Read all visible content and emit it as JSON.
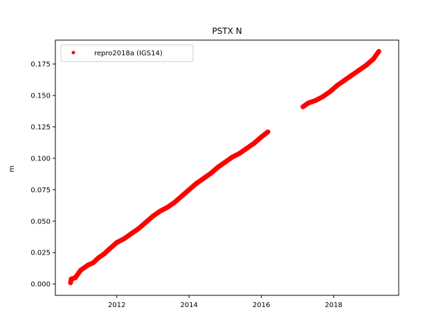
{
  "chart_data": {
    "type": "scatter",
    "title": "PSTX N",
    "xlabel": "",
    "ylabel": "m",
    "xlim": [
      2010.3,
      2019.8
    ],
    "ylim": [
      -0.009,
      0.194
    ],
    "x_ticks": [
      2012,
      2014,
      2016,
      2018
    ],
    "y_ticks": [
      0.0,
      0.025,
      0.05,
      0.075,
      0.1,
      0.125,
      0.15,
      0.175
    ],
    "y_tick_labels": [
      "0.000",
      "0.025",
      "0.050",
      "0.075",
      "0.100",
      "0.125",
      "0.150",
      "0.175"
    ],
    "x_tick_labels": [
      "2012",
      "2014",
      "2016",
      "2018"
    ],
    "grid": false,
    "legend_position": "top-left",
    "series": [
      {
        "name": "repro2018a (IGS14)",
        "color": "#ff0000",
        "marker": "circle",
        "x": [
          2010.72,
          2010.74,
          2010.85,
          2011.0,
          2011.1,
          2011.2,
          2011.35,
          2011.5,
          2011.65,
          2011.8,
          2012.0,
          2012.2,
          2012.4,
          2012.6,
          2012.8,
          2013.0,
          2013.2,
          2013.4,
          2013.6,
          2013.8,
          2014.0,
          2014.2,
          2014.4,
          2014.6,
          2014.8,
          2015.0,
          2015.2,
          2015.4,
          2015.6,
          2015.8,
          2016.0,
          2016.18,
          2017.15,
          2017.3,
          2017.5,
          2017.7,
          2017.9,
          2018.1,
          2018.3,
          2018.5,
          2018.7,
          2018.9,
          2019.1,
          2019.25
        ],
        "y": [
          0.001,
          0.004,
          0.005,
          0.011,
          0.013,
          0.015,
          0.017,
          0.021,
          0.024,
          0.028,
          0.033,
          0.036,
          0.04,
          0.044,
          0.049,
          0.054,
          0.058,
          0.061,
          0.065,
          0.07,
          0.075,
          0.08,
          0.084,
          0.088,
          0.093,
          0.097,
          0.101,
          0.104,
          0.108,
          0.112,
          0.117,
          0.121,
          0.141,
          0.144,
          0.146,
          0.149,
          0.153,
          0.158,
          0.162,
          0.166,
          0.17,
          0.174,
          0.179,
          0.185
        ]
      }
    ]
  }
}
